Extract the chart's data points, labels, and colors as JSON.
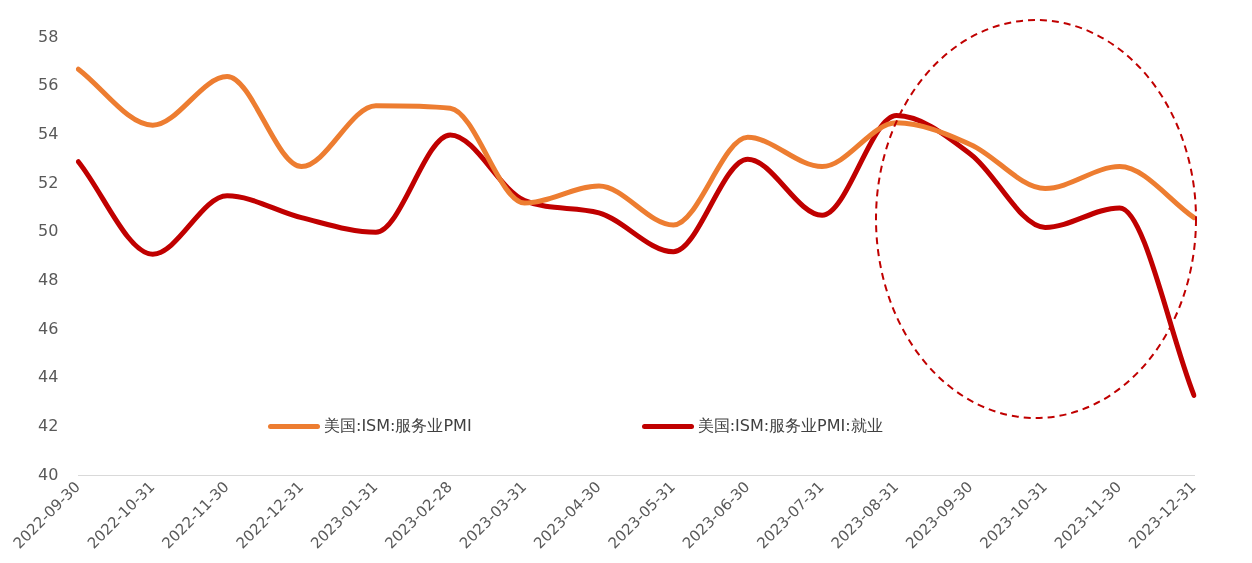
{
  "chart_data": {
    "type": "line",
    "categories": [
      "2022-09-30",
      "2022-10-31",
      "2022-11-30",
      "2022-12-31",
      "2023-01-31",
      "2023-02-28",
      "2023-03-31",
      "2023-04-30",
      "2023-05-31",
      "2023-06-30",
      "2023-07-31",
      "2023-08-31",
      "2023-09-30",
      "2023-10-31",
      "2023-11-30",
      "2023-12-31"
    ],
    "series": [
      {
        "name": "美国:ISM:服务业PMI",
        "color": "#ed7d31",
        "values": [
          56.7,
          54.4,
          56.4,
          52.7,
          55.2,
          55.1,
          51.2,
          51.9,
          50.3,
          53.9,
          52.7,
          54.5,
          53.6,
          51.8,
          52.7,
          50.6
        ]
      },
      {
        "name": "美国:ISM:服务业PMI:就业",
        "color": "#c00000",
        "values": [
          52.9,
          49.1,
          51.5,
          50.6,
          50.0,
          54.0,
          51.3,
          50.8,
          49.2,
          53.0,
          50.7,
          54.8,
          53.2,
          50.2,
          51.0,
          43.3
        ]
      }
    ],
    "ylim": [
      40,
      58
    ],
    "yticks": [
      40,
      42,
      44,
      46,
      48,
      50,
      52,
      54,
      56,
      58
    ],
    "grid": false,
    "legend": "bottom",
    "marker": "none",
    "line_style": "solid"
  }
}
